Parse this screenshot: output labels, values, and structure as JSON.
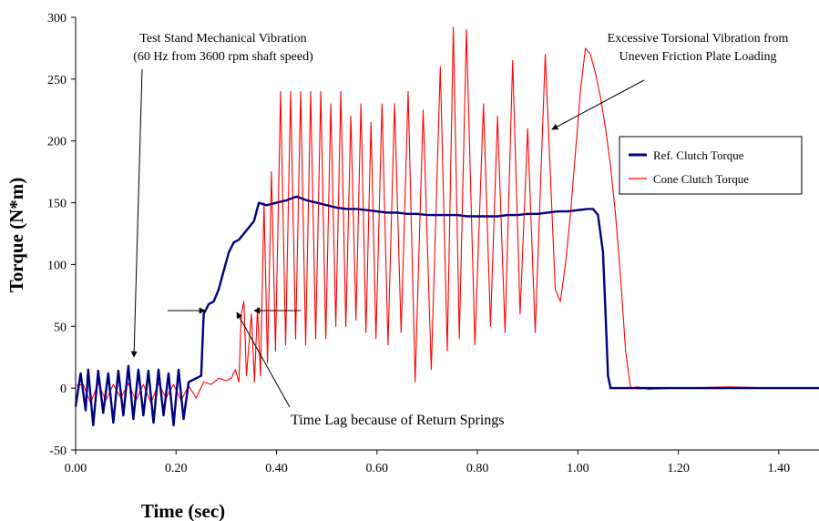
{
  "chart_data": {
    "type": "line",
    "xlabel": "Time (sec)",
    "ylabel": "Torque (N*m)",
    "xlim": [
      0,
      1.48
    ],
    "ylim": [
      -50,
      300
    ],
    "x_ticks": [
      "0.00",
      "0.20",
      "0.40",
      "0.60",
      "0.80",
      "1.00",
      "1.20",
      "1.40"
    ],
    "x_tick_values": [
      0,
      0.2,
      0.4,
      0.6,
      0.8,
      1.0,
      1.2,
      1.4
    ],
    "y_ticks": [
      "-50",
      "0",
      "50",
      "100",
      "150",
      "200",
      "250",
      "300"
    ],
    "y_tick_values": [
      -50,
      0,
      50,
      100,
      150,
      200,
      250,
      300
    ],
    "grid": false,
    "legend_position": "right",
    "series": [
      {
        "name": "Ref. Clutch Torque",
        "color": "#000080",
        "points": [
          [
            0.0,
            -15
          ],
          [
            0.01,
            12
          ],
          [
            0.02,
            -18
          ],
          [
            0.025,
            15
          ],
          [
            0.035,
            -30
          ],
          [
            0.045,
            14
          ],
          [
            0.055,
            -20
          ],
          [
            0.065,
            12
          ],
          [
            0.075,
            -28
          ],
          [
            0.085,
            14
          ],
          [
            0.095,
            -22
          ],
          [
            0.105,
            18
          ],
          [
            0.115,
            -25
          ],
          [
            0.125,
            15
          ],
          [
            0.135,
            -22
          ],
          [
            0.145,
            14
          ],
          [
            0.155,
            -28
          ],
          [
            0.165,
            15
          ],
          [
            0.175,
            -22
          ],
          [
            0.185,
            12
          ],
          [
            0.195,
            -30
          ],
          [
            0.205,
            15
          ],
          [
            0.215,
            -25
          ],
          [
            0.225,
            5
          ],
          [
            0.24,
            8
          ],
          [
            0.25,
            10
          ],
          [
            0.255,
            60
          ],
          [
            0.265,
            68
          ],
          [
            0.275,
            70
          ],
          [
            0.285,
            80
          ],
          [
            0.295,
            95
          ],
          [
            0.305,
            110
          ],
          [
            0.315,
            118
          ],
          [
            0.325,
            120
          ],
          [
            0.335,
            125
          ],
          [
            0.345,
            130
          ],
          [
            0.355,
            135
          ],
          [
            0.365,
            150
          ],
          [
            0.38,
            148
          ],
          [
            0.4,
            150
          ],
          [
            0.42,
            152
          ],
          [
            0.44,
            155
          ],
          [
            0.46,
            152
          ],
          [
            0.48,
            150
          ],
          [
            0.5,
            148
          ],
          [
            0.52,
            146
          ],
          [
            0.54,
            145
          ],
          [
            0.56,
            145
          ],
          [
            0.58,
            144
          ],
          [
            0.6,
            143
          ],
          [
            0.62,
            142
          ],
          [
            0.64,
            142
          ],
          [
            0.66,
            141
          ],
          [
            0.68,
            141
          ],
          [
            0.7,
            140
          ],
          [
            0.72,
            140
          ],
          [
            0.74,
            140
          ],
          [
            0.76,
            140
          ],
          [
            0.78,
            139
          ],
          [
            0.8,
            139
          ],
          [
            0.82,
            139
          ],
          [
            0.84,
            139
          ],
          [
            0.86,
            140
          ],
          [
            0.88,
            140
          ],
          [
            0.9,
            141
          ],
          [
            0.92,
            141
          ],
          [
            0.94,
            142
          ],
          [
            0.96,
            143
          ],
          [
            0.98,
            143
          ],
          [
            1.0,
            144
          ],
          [
            1.02,
            145
          ],
          [
            1.03,
            145
          ],
          [
            1.04,
            140
          ],
          [
            1.05,
            110
          ],
          [
            1.055,
            60
          ],
          [
            1.06,
            10
          ],
          [
            1.065,
            0
          ],
          [
            1.48,
            0
          ]
        ]
      },
      {
        "name": "Cone Clutch Torque",
        "color": "#ff0000",
        "points": [
          [
            0.0,
            2
          ],
          [
            0.015,
            3
          ],
          [
            0.03,
            -12
          ],
          [
            0.045,
            4
          ],
          [
            0.06,
            -10
          ],
          [
            0.075,
            3
          ],
          [
            0.09,
            -8
          ],
          [
            0.105,
            4
          ],
          [
            0.12,
            -10
          ],
          [
            0.135,
            3
          ],
          [
            0.15,
            -12
          ],
          [
            0.165,
            4
          ],
          [
            0.18,
            -8
          ],
          [
            0.195,
            3
          ],
          [
            0.21,
            -10
          ],
          [
            0.225,
            2
          ],
          [
            0.24,
            -8
          ],
          [
            0.255,
            5
          ],
          [
            0.27,
            3
          ],
          [
            0.285,
            8
          ],
          [
            0.3,
            6
          ],
          [
            0.31,
            8
          ],
          [
            0.318,
            15
          ],
          [
            0.325,
            5
          ],
          [
            0.33,
            60
          ],
          [
            0.335,
            70
          ],
          [
            0.34,
            10
          ],
          [
            0.35,
            60
          ],
          [
            0.356,
            5
          ],
          [
            0.362,
            65
          ],
          [
            0.368,
            10
          ],
          [
            0.375,
            150
          ],
          [
            0.382,
            20
          ],
          [
            0.39,
            175
          ],
          [
            0.398,
            30
          ],
          [
            0.408,
            240
          ],
          [
            0.418,
            35
          ],
          [
            0.428,
            240
          ],
          [
            0.438,
            40
          ],
          [
            0.448,
            240
          ],
          [
            0.458,
            35
          ],
          [
            0.468,
            240
          ],
          [
            0.478,
            40
          ],
          [
            0.488,
            240
          ],
          [
            0.498,
            40
          ],
          [
            0.508,
            230
          ],
          [
            0.518,
            50
          ],
          [
            0.528,
            240
          ],
          [
            0.538,
            50
          ],
          [
            0.548,
            220
          ],
          [
            0.558,
            55
          ],
          [
            0.568,
            230
          ],
          [
            0.578,
            45
          ],
          [
            0.588,
            215
          ],
          [
            0.598,
            40
          ],
          [
            0.61,
            230
          ],
          [
            0.622,
            35
          ],
          [
            0.635,
            230
          ],
          [
            0.648,
            45
          ],
          [
            0.662,
            240
          ],
          [
            0.676,
            5
          ],
          [
            0.692,
            225
          ],
          [
            0.708,
            15
          ],
          [
            0.726,
            260
          ],
          [
            0.74,
            30
          ],
          [
            0.752,
            292
          ],
          [
            0.764,
            40
          ],
          [
            0.778,
            290
          ],
          [
            0.795,
            35
          ],
          [
            0.812,
            230
          ],
          [
            0.826,
            50
          ],
          [
            0.84,
            220
          ],
          [
            0.855,
            45
          ],
          [
            0.87,
            265
          ],
          [
            0.885,
            60
          ],
          [
            0.9,
            210
          ],
          [
            0.915,
            45
          ],
          [
            0.935,
            270
          ],
          [
            0.955,
            80
          ],
          [
            0.965,
            70
          ],
          [
            0.975,
            100
          ],
          [
            0.985,
            140
          ],
          [
            0.995,
            190
          ],
          [
            1.005,
            240
          ],
          [
            1.015,
            275
          ],
          [
            1.025,
            270
          ],
          [
            1.035,
            255
          ],
          [
            1.045,
            235
          ],
          [
            1.055,
            210
          ],
          [
            1.065,
            180
          ],
          [
            1.075,
            140
          ],
          [
            1.085,
            90
          ],
          [
            1.095,
            30
          ],
          [
            1.105,
            0
          ],
          [
            1.12,
            1
          ],
          [
            1.14,
            -1
          ],
          [
            1.2,
            0
          ],
          [
            1.3,
            1
          ],
          [
            1.4,
            0
          ],
          [
            1.48,
            0
          ]
        ]
      }
    ],
    "annotations": [
      {
        "id": "vib",
        "lines": [
          "Test Stand Mechanical Vibration",
          "(60 Hz from 3600 rpm shaft speed)"
        ]
      },
      {
        "id": "tors",
        "lines": [
          "Excessive Torsional Vibration from",
          "Uneven Friction Plate Loading"
        ]
      },
      {
        "id": "lag",
        "lines": [
          "Time Lag because of Return Springs"
        ]
      }
    ]
  }
}
